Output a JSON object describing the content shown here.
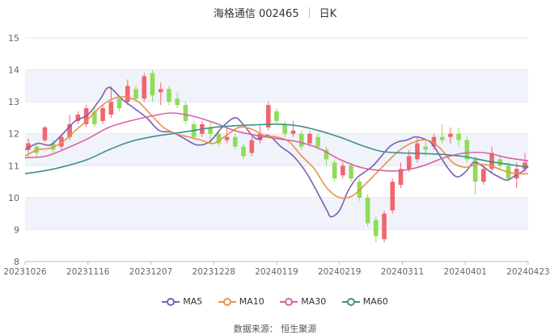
{
  "header": {
    "name_code": "海格通信 002465",
    "period": "日K"
  },
  "footer": {
    "source": "数据来源：  恒生聚源"
  },
  "legend": [
    {
      "name": "MA5",
      "color": "#7a5fb0"
    },
    {
      "name": "MA10",
      "color": "#e8924a"
    },
    {
      "name": "MA30",
      "color": "#d960a8"
    },
    {
      "name": "MA60",
      "color": "#3f8f8f"
    }
  ],
  "colors": {
    "up": "#f0666e",
    "down": "#8fdc5a",
    "band": "#f1f3fa",
    "grid": "#e6e6e6"
  },
  "chart_data": {
    "type": "line",
    "title": "海格通信 002465 日K",
    "ylim": [
      8,
      15
    ],
    "yticks": [
      8,
      9,
      10,
      11,
      12,
      13,
      14,
      15
    ],
    "xticks": [
      "20231026",
      "20231116",
      "20231207",
      "20231228",
      "20240119",
      "20240219",
      "20240311",
      "20240401",
      "20240423"
    ],
    "xtick_index": [
      0,
      15,
      30,
      45,
      60,
      75,
      90,
      105,
      120
    ],
    "n_points": 121,
    "series": [
      {
        "name": "MA5",
        "color": "#7a5fb0",
        "points": [
          [
            0,
            11.5
          ],
          [
            3,
            11.7
          ],
          [
            6,
            11.65
          ],
          [
            9,
            12.0
          ],
          [
            12,
            12.4
          ],
          [
            15,
            12.6
          ],
          [
            18,
            13.1
          ],
          [
            20,
            13.45
          ],
          [
            23,
            13.1
          ],
          [
            26,
            12.8
          ],
          [
            29,
            12.5
          ],
          [
            32,
            12.1
          ],
          [
            35,
            12.05
          ],
          [
            38,
            11.85
          ],
          [
            41,
            11.65
          ],
          [
            44,
            11.75
          ],
          [
            47,
            12.2
          ],
          [
            50,
            12.5
          ],
          [
            52,
            12.3
          ],
          [
            55,
            11.85
          ],
          [
            58,
            11.95
          ],
          [
            61,
            11.6
          ],
          [
            64,
            11.3
          ],
          [
            67,
            10.8
          ],
          [
            70,
            10.1
          ],
          [
            72,
            9.6
          ],
          [
            73,
            9.4
          ],
          [
            75,
            9.6
          ],
          [
            77,
            10.2
          ],
          [
            79,
            10.6
          ],
          [
            81,
            10.8
          ],
          [
            83,
            11.0
          ],
          [
            85,
            11.3
          ],
          [
            87,
            11.6
          ],
          [
            89,
            11.75
          ],
          [
            91,
            11.8
          ],
          [
            93,
            11.9
          ],
          [
            95,
            11.85
          ],
          [
            97,
            11.7
          ],
          [
            99,
            11.3
          ],
          [
            101,
            10.9
          ],
          [
            103,
            10.65
          ],
          [
            105,
            10.8
          ],
          [
            107,
            11.1
          ],
          [
            109,
            11.0
          ],
          [
            111,
            10.8
          ],
          [
            113,
            10.65
          ],
          [
            115,
            10.55
          ],
          [
            117,
            10.7
          ],
          [
            119,
            10.85
          ],
          [
            120,
            11.0
          ]
        ]
      },
      {
        "name": "MA10",
        "color": "#e8924a",
        "points": [
          [
            0,
            11.3
          ],
          [
            3,
            11.5
          ],
          [
            6,
            11.55
          ],
          [
            9,
            11.75
          ],
          [
            12,
            12.1
          ],
          [
            15,
            12.45
          ],
          [
            18,
            12.85
          ],
          [
            21,
            13.1
          ],
          [
            24,
            13.15
          ],
          [
            27,
            13.0
          ],
          [
            30,
            12.6
          ],
          [
            33,
            12.2
          ],
          [
            36,
            12.0
          ],
          [
            39,
            11.9
          ],
          [
            42,
            11.8
          ],
          [
            45,
            11.7
          ],
          [
            48,
            11.95
          ],
          [
            51,
            12.2
          ],
          [
            54,
            12.15
          ],
          [
            57,
            11.95
          ],
          [
            60,
            11.9
          ],
          [
            63,
            11.75
          ],
          [
            66,
            11.3
          ],
          [
            69,
            10.9
          ],
          [
            72,
            10.3
          ],
          [
            75,
            10.0
          ],
          [
            78,
            10.05
          ],
          [
            81,
            10.4
          ],
          [
            84,
            10.8
          ],
          [
            87,
            11.2
          ],
          [
            90,
            11.55
          ],
          [
            93,
            11.75
          ],
          [
            96,
            11.8
          ],
          [
            99,
            11.55
          ],
          [
            102,
            11.1
          ],
          [
            105,
            10.95
          ],
          [
            108,
            11.05
          ],
          [
            111,
            11.0
          ],
          [
            114,
            10.85
          ],
          [
            117,
            10.75
          ],
          [
            120,
            10.75
          ]
        ]
      },
      {
        "name": "MA30",
        "color": "#d960a8",
        "points": [
          [
            0,
            11.25
          ],
          [
            5,
            11.3
          ],
          [
            10,
            11.55
          ],
          [
            15,
            11.85
          ],
          [
            20,
            12.2
          ],
          [
            25,
            12.4
          ],
          [
            30,
            12.55
          ],
          [
            35,
            12.65
          ],
          [
            40,
            12.55
          ],
          [
            45,
            12.35
          ],
          [
            50,
            12.1
          ],
          [
            55,
            11.95
          ],
          [
            60,
            11.85
          ],
          [
            65,
            11.75
          ],
          [
            70,
            11.55
          ],
          [
            75,
            11.2
          ],
          [
            80,
            10.95
          ],
          [
            85,
            10.85
          ],
          [
            90,
            10.85
          ],
          [
            95,
            11.0
          ],
          [
            100,
            11.25
          ],
          [
            105,
            11.4
          ],
          [
            110,
            11.4
          ],
          [
            115,
            11.25
          ],
          [
            120,
            11.15
          ]
        ]
      },
      {
        "name": "MA60",
        "color": "#3f8f8f",
        "points": [
          [
            0,
            10.75
          ],
          [
            5,
            10.85
          ],
          [
            10,
            11.0
          ],
          [
            15,
            11.2
          ],
          [
            20,
            11.5
          ],
          [
            25,
            11.75
          ],
          [
            30,
            11.9
          ],
          [
            35,
            12.0
          ],
          [
            40,
            12.1
          ],
          [
            45,
            12.2
          ],
          [
            50,
            12.25
          ],
          [
            55,
            12.28
          ],
          [
            60,
            12.3
          ],
          [
            65,
            12.25
          ],
          [
            70,
            12.1
          ],
          [
            75,
            11.9
          ],
          [
            80,
            11.65
          ],
          [
            85,
            11.45
          ],
          [
            90,
            11.4
          ],
          [
            95,
            11.38
          ],
          [
            100,
            11.35
          ],
          [
            105,
            11.28
          ],
          [
            110,
            11.15
          ],
          [
            115,
            11.05
          ],
          [
            120,
            10.95
          ]
        ]
      }
    ],
    "candles": [
      [
        11.5,
        11.7,
        11.85,
        11.3
      ],
      [
        11.6,
        11.4,
        11.7,
        11.3
      ],
      [
        11.8,
        12.2,
        12.25,
        11.75
      ],
      [
        11.7,
        11.5,
        11.8,
        11.4
      ],
      [
        11.6,
        11.9,
        12.0,
        11.5
      ],
      [
        11.9,
        12.3,
        12.6,
        11.8
      ],
      [
        12.4,
        12.6,
        12.7,
        12.3
      ],
      [
        12.3,
        12.8,
        12.9,
        12.2
      ],
      [
        12.7,
        12.3,
        12.8,
        12.2
      ],
      [
        12.4,
        12.8,
        12.9,
        12.3
      ],
      [
        12.6,
        13.0,
        13.5,
        12.5
      ],
      [
        13.1,
        12.8,
        13.2,
        12.7
      ],
      [
        13.0,
        13.5,
        13.7,
        12.9
      ],
      [
        13.4,
        13.1,
        13.5,
        13.0
      ],
      [
        13.1,
        13.8,
        13.9,
        13.0
      ],
      [
        13.9,
        13.2,
        14.0,
        13.0
      ],
      [
        13.3,
        13.4,
        13.6,
        12.9
      ],
      [
        13.4,
        13.0,
        13.5,
        12.9
      ],
      [
        13.1,
        12.9,
        13.3,
        12.8
      ],
      [
        12.9,
        12.4,
        13.0,
        12.3
      ],
      [
        12.3,
        11.9,
        12.4,
        11.8
      ],
      [
        12.0,
        12.3,
        12.4,
        11.9
      ],
      [
        12.2,
        12.0,
        12.4,
        11.7
      ],
      [
        12.0,
        11.7,
        12.1,
        11.6
      ],
      [
        11.8,
        11.9,
        12.2,
        11.7
      ],
      [
        11.9,
        11.6,
        12.0,
        11.5
      ],
      [
        11.6,
        11.3,
        11.7,
        11.2
      ],
      [
        11.4,
        11.8,
        11.9,
        11.3
      ],
      [
        11.8,
        12.0,
        12.3,
        11.7
      ],
      [
        12.2,
        12.9,
        13.0,
        12.1
      ],
      [
        12.7,
        12.4,
        12.8,
        12.3
      ],
      [
        12.3,
        12.0,
        12.4,
        11.9
      ],
      [
        12.0,
        12.1,
        12.4,
        11.9
      ],
      [
        12.0,
        11.6,
        12.1,
        11.5
      ],
      [
        11.7,
        12.0,
        12.1,
        11.6
      ],
      [
        11.9,
        11.6,
        12.0,
        11.5
      ],
      [
        11.5,
        11.2,
        11.6,
        11.0
      ],
      [
        11.1,
        10.6,
        11.2,
        10.5
      ],
      [
        10.7,
        11.0,
        11.1,
        10.6
      ],
      [
        11.0,
        10.6,
        11.1,
        10.5
      ],
      [
        10.5,
        10.0,
        10.6,
        9.9
      ],
      [
        10.0,
        9.2,
        10.1,
        9.1
      ],
      [
        9.3,
        8.8,
        9.4,
        8.6
      ],
      [
        8.7,
        9.5,
        9.6,
        8.6
      ],
      [
        9.6,
        10.5,
        10.6,
        9.5
      ],
      [
        10.4,
        10.9,
        11.1,
        10.3
      ],
      [
        10.9,
        11.3,
        11.5,
        10.8
      ],
      [
        11.2,
        11.7,
        11.9,
        11.1
      ],
      [
        11.6,
        11.5,
        11.8,
        11.3
      ],
      [
        11.6,
        11.9,
        12.0,
        11.5
      ],
      [
        11.9,
        11.8,
        12.3,
        11.7
      ],
      [
        11.9,
        12.0,
        12.2,
        11.7
      ],
      [
        12.0,
        11.8,
        12.2,
        11.6
      ],
      [
        11.8,
        11.2,
        11.9,
        11.1
      ],
      [
        11.2,
        10.5,
        11.3,
        10.1
      ],
      [
        10.5,
        10.9,
        11.0,
        10.4
      ],
      [
        10.9,
        11.4,
        11.6,
        10.8
      ],
      [
        11.2,
        11.0,
        11.3,
        10.9
      ],
      [
        11.0,
        10.6,
        11.1,
        10.5
      ],
      [
        10.6,
        10.9,
        11.1,
        10.3
      ],
      [
        10.9,
        11.1,
        11.4,
        10.8
      ]
    ]
  }
}
